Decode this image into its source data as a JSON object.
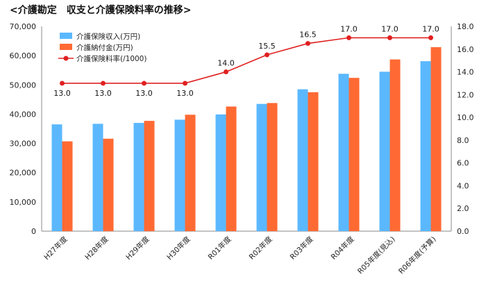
{
  "title": "<介護勘定　収支と介護保険料率の推移>",
  "chart_data": {
    "type": "bar",
    "categories": [
      "H27年度",
      "H28年度",
      "H29年度",
      "H30年度",
      "R01年度",
      "R02年度",
      "R03年度",
      "R04年度",
      "R05年度(見込)",
      "R06年度(予算)"
    ],
    "series": [
      {
        "name": "介護保険収入(万円)",
        "type": "bar",
        "axis": "left",
        "color": "#5bb8ff",
        "values": [
          36500,
          36700,
          37000,
          38100,
          39900,
          43500,
          48500,
          53800,
          54500,
          58100
        ]
      },
      {
        "name": "介護納付金(万円)",
        "type": "bar",
        "axis": "left",
        "color": "#ff6a33",
        "values": [
          30700,
          31600,
          37700,
          39800,
          42600,
          43800,
          47500,
          52400,
          58700,
          62900
        ]
      },
      {
        "name": "介護保険料率(/1000)",
        "type": "line",
        "axis": "right",
        "color": "#e02020",
        "values": [
          13.0,
          13.0,
          13.0,
          13.0,
          14.0,
          15.5,
          16.5,
          17.0,
          17.0,
          17.0
        ],
        "labels": [
          "13.0",
          "13.0",
          "13.0",
          "13.0",
          "14.0",
          "15.5",
          "16.5",
          "17.0",
          "17.0",
          "17.0"
        ]
      }
    ],
    "ylim_left": [
      0,
      70000
    ],
    "yticks_left": [
      "0",
      "10,000",
      "20,000",
      "30,000",
      "40,000",
      "50,000",
      "60,000",
      "70,000"
    ],
    "ylim_right": [
      0,
      18
    ],
    "yticks_right": [
      "0.0",
      "2.0",
      "4.0",
      "6.0",
      "8.0",
      "10.0",
      "12.0",
      "14.0",
      "16.0",
      "18.0"
    ],
    "grid": false,
    "legend": "top-left"
  }
}
